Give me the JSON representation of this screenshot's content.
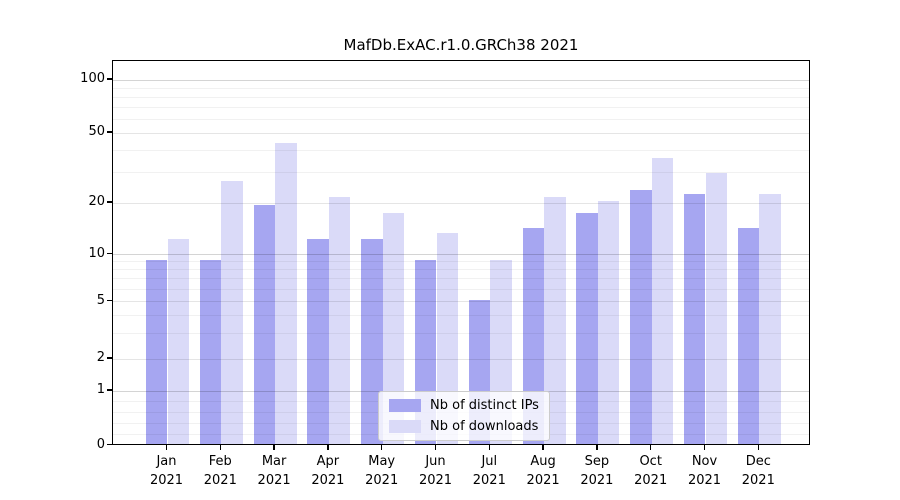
{
  "chart_data": {
    "type": "bar",
    "title": "MafDb.ExAC.r1.0.GRCh38 2021",
    "categories": [
      "Jan 2021",
      "Feb 2021",
      "Mar 2021",
      "Apr 2021",
      "May 2021",
      "Jun 2021",
      "Jul 2021",
      "Aug 2021",
      "Sep 2021",
      "Oct 2021",
      "Nov 2021",
      "Dec 2021"
    ],
    "series": [
      {
        "name": "Nb of distinct IPs",
        "color": "#a6a6f1",
        "values": [
          9,
          9,
          19,
          12,
          12,
          9,
          5,
          14,
          17,
          23,
          22,
          14
        ]
      },
      {
        "name": "Nb of downloads",
        "color": "#dadaf8",
        "values": [
          12,
          26,
          43,
          21,
          17,
          13,
          9,
          21,
          20,
          35,
          29,
          22
        ]
      }
    ],
    "yscale": "symlog",
    "y_ticks": [
      0,
      1,
      2,
      5,
      10,
      20,
      50,
      100
    ],
    "y_minor_ticks": [
      0.2,
      0.4,
      0.6,
      0.8,
      3,
      4,
      6,
      7,
      8,
      9,
      30,
      40,
      60,
      70,
      80,
      90
    ],
    "ylim": [
      0,
      130
    ],
    "grid": true,
    "legend": {
      "position": "lower center",
      "labels": [
        "Nb of distinct IPs",
        "Nb of downloads"
      ]
    }
  }
}
